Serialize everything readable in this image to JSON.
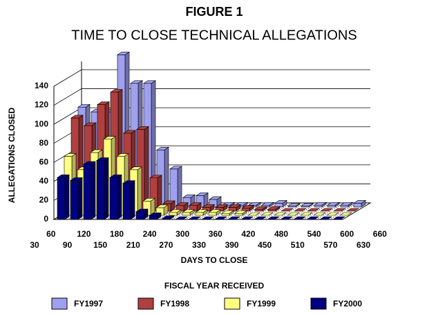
{
  "chart_data": {
    "type": "bar3d",
    "title": "FIGURE 1",
    "subtitle": "TIME TO CLOSE TECHNICAL ALLEGATIONS",
    "x_label": "DAYS TO CLOSE",
    "y_label": "ALLEGATIONS CLOSED",
    "legend_title": "FISCAL YEAR RECEIVED",
    "categories": [
      "30",
      "60",
      "90",
      "120",
      "150",
      "180",
      "210",
      "240",
      "270",
      "300",
      "330",
      "360",
      "390",
      "420",
      "450",
      "480",
      "510",
      "540",
      "570",
      "600",
      "630",
      "660"
    ],
    "series": [
      {
        "name": "FY1997",
        "color": "#a0a0f0",
        "values": [
          105,
          100,
          100,
          160,
          130,
          130,
          60,
          40,
          10,
          12,
          8,
          2,
          2,
          2,
          2,
          4,
          1,
          1,
          2,
          2,
          2,
          4
        ]
      },
      {
        "name": "FY1998",
        "color": "#b04040",
        "values": [
          98,
          90,
          112,
          125,
          82,
          86,
          35,
          8,
          6,
          6,
          4,
          4,
          4,
          3,
          2,
          2,
          0,
          0,
          0,
          0,
          0,
          0
        ]
      },
      {
        "name": "FY1999",
        "color": "#ffff80",
        "values": [
          62,
          48,
          66,
          80,
          62,
          48,
          15,
          8,
          3,
          3,
          3,
          3,
          2,
          2,
          0,
          0,
          0,
          0,
          0,
          0,
          0,
          0
        ]
      },
      {
        "name": "FY2000",
        "color": "#000080",
        "values": [
          44,
          41,
          58,
          62,
          44,
          38,
          8,
          4,
          1,
          0,
          0,
          0,
          0,
          0,
          0,
          0,
          0,
          0,
          0,
          0,
          0,
          0
        ]
      }
    ],
    "ylim": [
      0,
      140
    ],
    "yticks": [
      0,
      20,
      40,
      60,
      80,
      100,
      120,
      140
    ],
    "grid": true
  }
}
